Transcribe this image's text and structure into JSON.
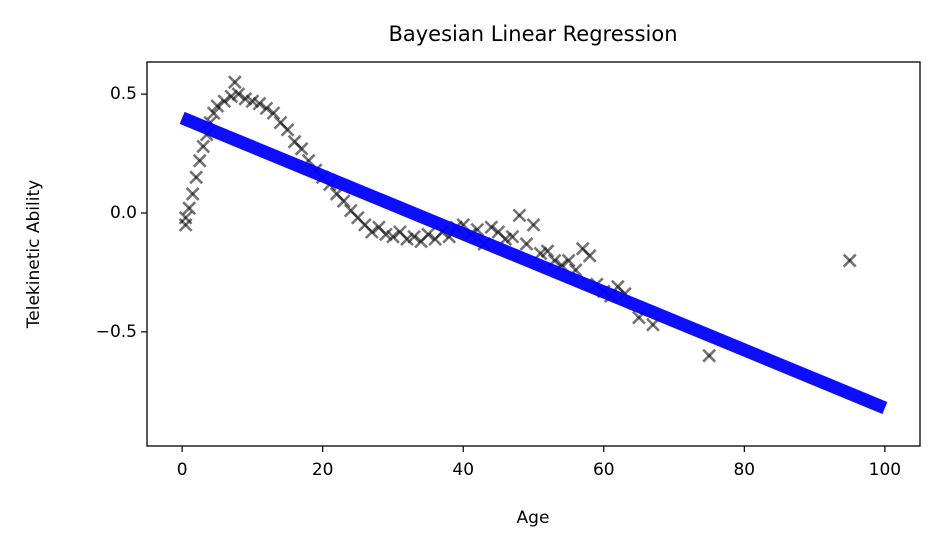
{
  "chart_data": {
    "type": "scatter",
    "title": "Bayesian Linear Regression",
    "x_label": "Age",
    "y_label": "Telekinetic Ability",
    "xlim": [
      -5,
      105
    ],
    "ylim": [
      -0.98,
      0.635
    ],
    "xticks": [
      0,
      20,
      40,
      60,
      80,
      100
    ],
    "yticks": [
      0.5,
      {
        "value": 0,
        "label": "0.0"
      },
      {
        "value": -0.5,
        "label": "−0.5"
      }
    ],
    "grid": false,
    "series": [
      {
        "type": "scatter",
        "marker": "x",
        "color": "#000000",
        "x": [
          0.5,
          0.5,
          1,
          1.5,
          2,
          2.5,
          3,
          3.5,
          4,
          4.5,
          5,
          6,
          7,
          7.5,
          8,
          9,
          10,
          11,
          12,
          13,
          14,
          15,
          16,
          17,
          18,
          19,
          20,
          21,
          22,
          23,
          24,
          25,
          26,
          27,
          28,
          29,
          30,
          31,
          32,
          33,
          34,
          35,
          36,
          37,
          38,
          39,
          40,
          41,
          42,
          43,
          44,
          45,
          46,
          47,
          48,
          49,
          50,
          51,
          52,
          53,
          54,
          55,
          56,
          57,
          58,
          59,
          60,
          61,
          62,
          63,
          65,
          67,
          75,
          95
        ],
        "values": [
          -0.02,
          -0.05,
          0.02,
          0.08,
          0.15,
          0.22,
          0.28,
          0.33,
          0.38,
          0.42,
          0.45,
          0.47,
          0.49,
          0.55,
          0.5,
          0.48,
          0.47,
          0.46,
          0.44,
          0.42,
          0.38,
          0.35,
          0.3,
          0.27,
          0.22,
          0.18,
          0.15,
          0.12,
          0.08,
          0.05,
          0.01,
          -0.02,
          -0.05,
          -0.08,
          -0.06,
          -0.09,
          -0.1,
          -0.08,
          -0.11,
          -0.1,
          -0.12,
          -0.09,
          -0.11,
          -0.08,
          -0.1,
          -0.06,
          -0.05,
          -0.09,
          -0.07,
          -0.13,
          -0.06,
          -0.08,
          -0.11,
          -0.1,
          -0.01,
          -0.13,
          -0.05,
          -0.17,
          -0.16,
          -0.2,
          -0.22,
          -0.2,
          -0.24,
          -0.15,
          -0.18,
          -0.3,
          -0.33,
          -0.35,
          -0.31,
          -0.34,
          -0.44,
          -0.47,
          -0.6,
          -0.2
        ]
      },
      {
        "type": "line",
        "color": "#0000ff",
        "x": [
          0,
          100
        ],
        "values": [
          0.4,
          -0.82
        ]
      }
    ]
  }
}
